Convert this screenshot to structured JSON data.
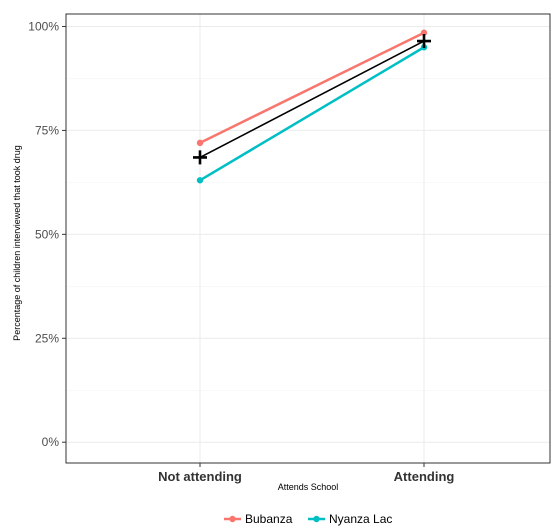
{
  "chart_data": {
    "type": "line",
    "categories": [
      "Not attending",
      "Attending"
    ],
    "series": [
      {
        "name": "Bubanza",
        "values": [
          72,
          98.5
        ],
        "color": "#F8766D"
      },
      {
        "name": "Nyanza Lac",
        "values": [
          63,
          95
        ],
        "color": "#00BFC4"
      }
    ],
    "overall_mean": {
      "values": [
        68.5,
        96.5
      ],
      "color": "#000000",
      "marker": "plus"
    },
    "ylabel": "Percentage of children interviewed that took drug",
    "xlabel": "Attends School",
    "ylim": [
      -5,
      103
    ],
    "yticks": [
      0,
      25,
      50,
      75,
      100
    ],
    "ytick_labels": [
      "0%",
      "25%",
      "50%",
      "75%",
      "100%"
    ],
    "grid": true,
    "legend_position": "bottom"
  }
}
